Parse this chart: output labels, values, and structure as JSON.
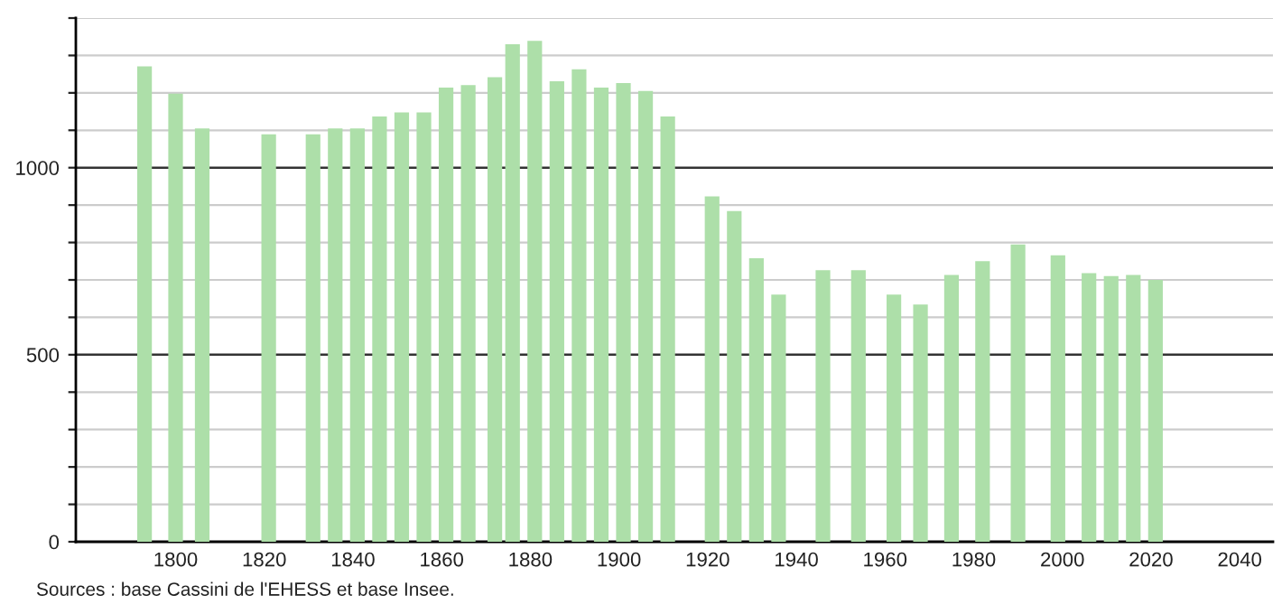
{
  "chart_data": {
    "type": "bar",
    "x": [
      1793,
      1800,
      1806,
      1821,
      1831,
      1836,
      1841,
      1846,
      1851,
      1856,
      1861,
      1866,
      1872,
      1876,
      1881,
      1886,
      1891,
      1896,
      1901,
      1906,
      1911,
      1921,
      1926,
      1931,
      1936,
      1946,
      1954,
      1962,
      1968,
      1975,
      1982,
      1990,
      1999,
      2006,
      2011,
      2016,
      2021
    ],
    "values": [
      1271,
      1198,
      1105,
      1089,
      1089,
      1105,
      1105,
      1137,
      1148,
      1148,
      1214,
      1221,
      1242,
      1330,
      1339,
      1231,
      1263,
      1214,
      1226,
      1205,
      1137,
      923,
      884,
      758,
      661,
      726,
      726,
      661,
      634,
      713,
      750,
      795,
      766,
      718,
      710,
      713,
      700
    ],
    "color": "#addfa9",
    "xlim": [
      1777.5,
      2047.5
    ],
    "xticks": [
      1800,
      1820,
      1840,
      1860,
      1880,
      1900,
      1920,
      1940,
      1960,
      1980,
      2000,
      2020,
      2040
    ],
    "ylim": [
      0,
      1400
    ],
    "yticks": [
      0,
      {
        "value": 100,
        "label": null
      },
      {
        "value": 200,
        "label": null
      },
      {
        "value": 300,
        "label": null
      },
      {
        "value": 400,
        "label": null
      },
      500,
      {
        "value": 600,
        "label": null
      },
      {
        "value": 700,
        "label": null
      },
      {
        "value": 800,
        "label": null
      },
      {
        "value": 900,
        "label": null
      },
      1000,
      {
        "value": 1100,
        "label": null
      },
      {
        "value": 1200,
        "label": null
      },
      {
        "value": 1300,
        "label": null
      },
      {
        "value": 1400,
        "label": null
      }
    ],
    "grid": "y",
    "annotations": [
      "Sources : base Cassini de l'EHESS et base Insee."
    ]
  }
}
